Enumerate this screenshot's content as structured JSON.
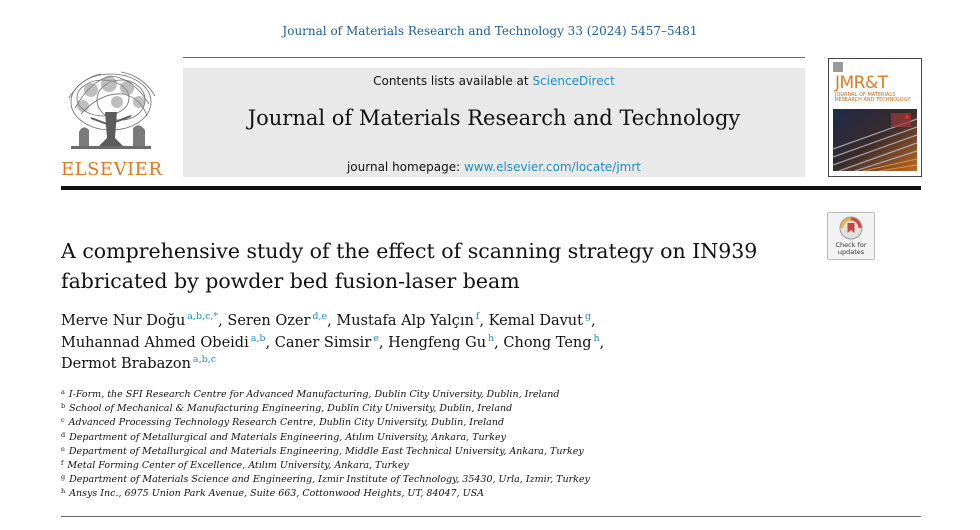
{
  "citation": "Journal of Materials Research and Technology 33 (2024) 5457–5481",
  "publisher": {
    "name": "ELSEVIER",
    "logo_icon": "elsevier-tree-logo-icon"
  },
  "header": {
    "contents_prefix": "Contents lists available at ",
    "contents_link": "ScienceDirect",
    "journal_title": "Journal of Materials Research and Technology",
    "homepage_prefix": "journal homepage: ",
    "homepage_link": "www.elsevier.com/locate/jmrt"
  },
  "cover": {
    "abbr": "JMR&T",
    "subtitle": "JOURNAL OF MATERIALS RESEARCH AND TECHNOLOGY"
  },
  "updates_badge": {
    "label_line1": "Check for",
    "label_line2": "updates",
    "icon": "check-for-updates-icon"
  },
  "article": {
    "title": "A comprehensive study of the effect of scanning strategy on IN939 fabricated by powder bed fusion-laser beam",
    "authors": [
      {
        "name": "Merve Nur Doğu",
        "sup": "a,b,c,*"
      },
      {
        "name": "Seren Ozer",
        "sup": "d,e"
      },
      {
        "name": "Mustafa Alp Yalçın",
        "sup": "f"
      },
      {
        "name": "Kemal Davut",
        "sup": "g"
      },
      {
        "name": "Muhannad Ahmed Obeidi",
        "sup": "a,b"
      },
      {
        "name": "Caner Simsir",
        "sup": "e"
      },
      {
        "name": "Hengfeng Gu",
        "sup": "h"
      },
      {
        "name": "Chong Teng",
        "sup": "h"
      },
      {
        "name": "Dermot Brabazon",
        "sup": "a,b,c"
      }
    ],
    "affiliations": [
      {
        "key": "a",
        "text": "I-Form, the SFI Research Centre for Advanced Manufacturing, Dublin City University, Dublin, Ireland"
      },
      {
        "key": "b",
        "text": "School of Mechanical & Manufacturing Engineering, Dublin City University, Dublin, Ireland"
      },
      {
        "key": "c",
        "text": "Advanced Processing Technology Research Centre, Dublin City University, Dublin, Ireland"
      },
      {
        "key": "d",
        "text": "Department of Metallurgical and Materials Engineering, Atılım University, Ankara, Turkey"
      },
      {
        "key": "e",
        "text": "Department of Metallurgical and Materials Engineering, Middle East Technical University, Ankara, Turkey"
      },
      {
        "key": "f",
        "text": "Metal Forming Center of Excellence, Atılım University, Ankara, Turkey"
      },
      {
        "key": "g",
        "text": "Department of Materials Science and Engineering, Izmir Institute of Technology, 35430, Urla, Izmir, Turkey"
      },
      {
        "key": "h",
        "text": "Ansys Inc., 6975 Union Park Avenue, Suite 663, Cottonwood Heights, UT, 84047, USA"
      }
    ]
  }
}
